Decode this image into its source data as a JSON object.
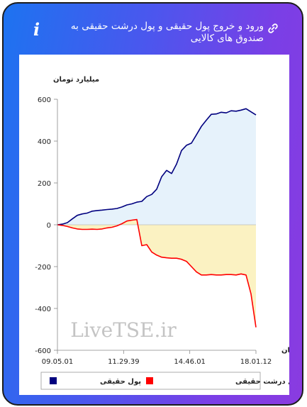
{
  "header": {
    "title": "ورود و خروج پول حقیقی و پول درشت حقیقی به صندوق های کالایی",
    "info_icon": "info-icon",
    "link_icon": "link-icon"
  },
  "watermark": "LiveTSE.ir",
  "chart_data": {
    "type": "area",
    "ylabel": "میلیارد تومان",
    "xlabel": "زمان",
    "ylim": [
      -600,
      600
    ],
    "yticks": [
      600,
      400,
      200,
      0,
      -200,
      -400,
      -600
    ],
    "xticks": [
      "09.05.01",
      "11.29.39",
      "14.46.01",
      "18.01.12"
    ],
    "grid": false,
    "legend_position": "bottom",
    "series": [
      {
        "name": "پول حقیقی",
        "color": "#00007f",
        "fill": "#e6f2fb",
        "x": [
          0,
          1,
          2,
          3,
          4,
          5,
          6,
          7,
          8,
          9,
          10,
          11,
          12,
          13,
          14,
          15,
          16,
          17,
          18,
          19,
          20,
          21,
          22,
          23,
          24,
          25,
          26,
          27,
          28,
          29,
          30,
          31,
          32,
          33,
          34,
          35,
          36,
          37,
          38,
          39,
          40
        ],
        "values": [
          0,
          3,
          10,
          28,
          45,
          52,
          56,
          65,
          68,
          70,
          73,
          75,
          78,
          85,
          95,
          100,
          108,
          112,
          135,
          145,
          170,
          230,
          260,
          245,
          290,
          355,
          380,
          390,
          430,
          470,
          500,
          528,
          530,
          538,
          535,
          545,
          543,
          548,
          555,
          540,
          525
        ]
      },
      {
        "name": "پول درشت حقیقی",
        "color": "#ff0000",
        "fill": "#fbf2c2",
        "x": [
          0,
          1,
          2,
          3,
          4,
          5,
          6,
          7,
          8,
          9,
          10,
          11,
          12,
          13,
          14,
          15,
          16,
          17,
          18,
          19,
          20,
          21,
          22,
          23,
          24,
          25,
          26,
          27,
          28,
          29,
          30,
          31,
          32,
          33,
          34,
          35,
          36,
          37,
          38,
          39,
          40
        ],
        "values": [
          0,
          -3,
          -8,
          -15,
          -20,
          -22,
          -22,
          -21,
          -22,
          -20,
          -15,
          -12,
          -5,
          5,
          18,
          22,
          25,
          -100,
          -95,
          -130,
          -145,
          -155,
          -158,
          -160,
          -160,
          -165,
          -175,
          -200,
          -225,
          -240,
          -240,
          -238,
          -240,
          -240,
          -238,
          -238,
          -240,
          -235,
          -240,
          -330,
          -490
        ]
      }
    ]
  },
  "colors": {
    "gradient_start": "#1d73f0",
    "gradient_end": "#8a3be0",
    "panel": "#ffffff"
  }
}
